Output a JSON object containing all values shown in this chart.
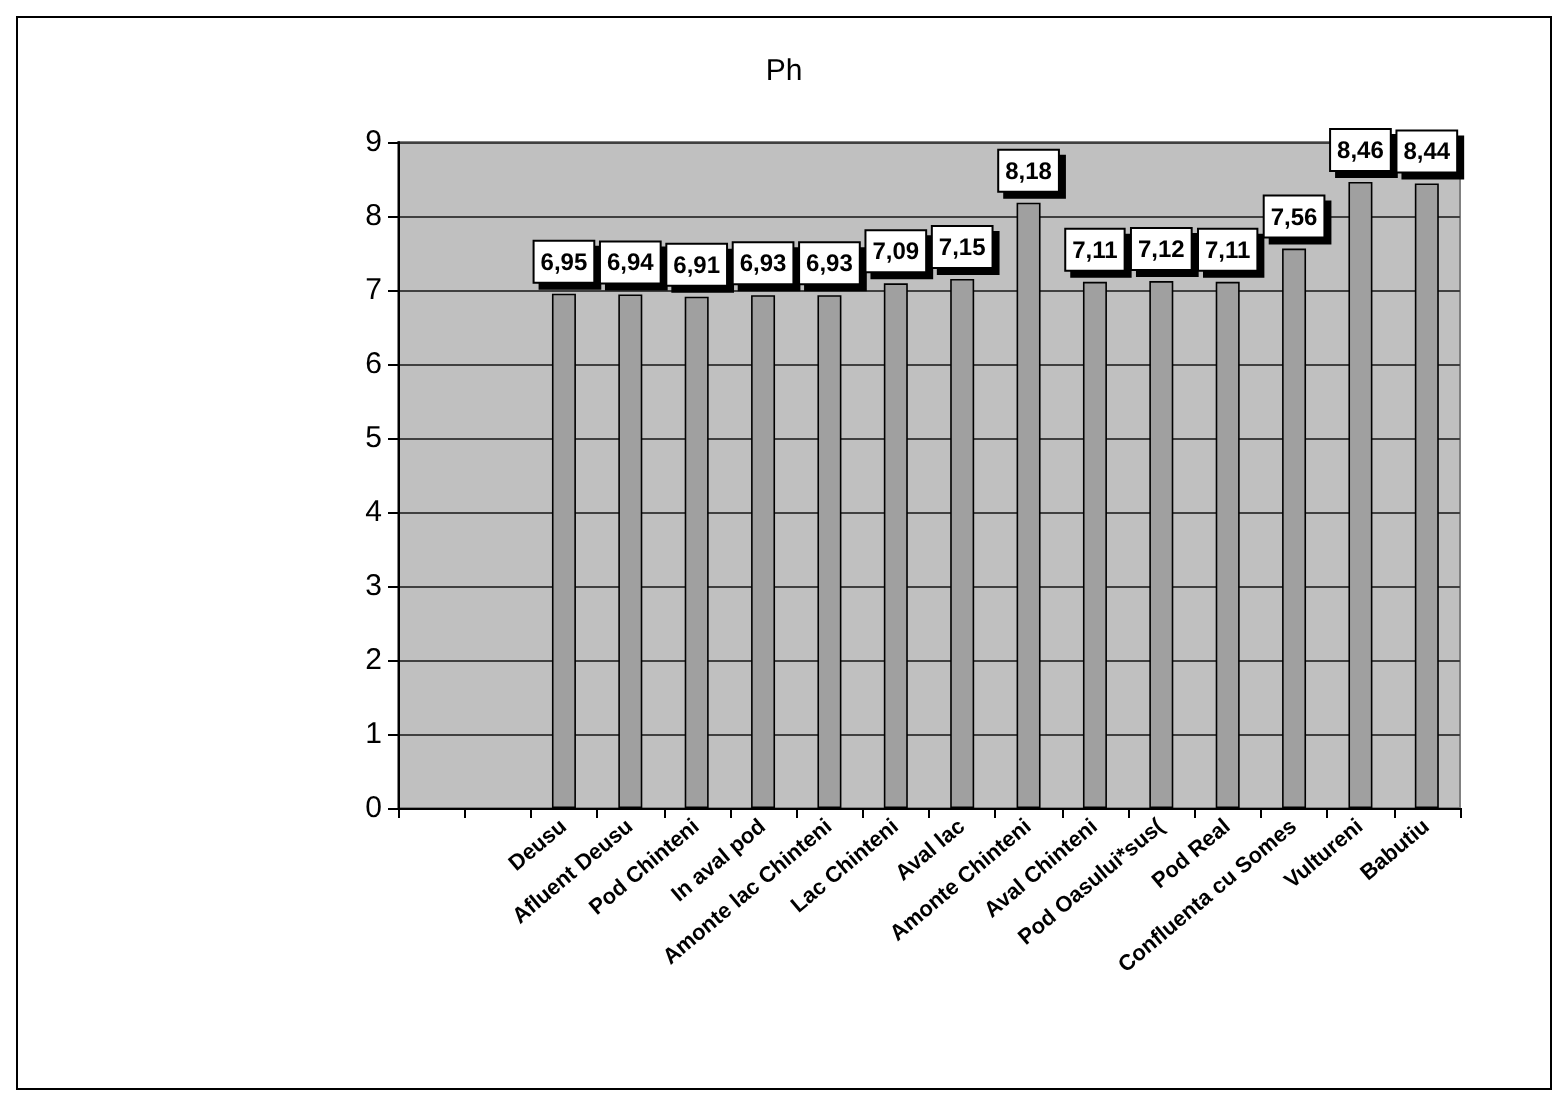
{
  "chart_data": {
    "type": "bar",
    "title": "Ph",
    "categories": [
      null,
      null,
      "Deusu",
      "Afluent Deusu",
      "Pod Chinteni",
      "In aval pod",
      "Amonte lac Chinteni",
      "Lac Chinteni",
      "Aval lac",
      "Amonte Chinteni",
      "Aval Chinteni",
      "Pod Oasului*sus(",
      "Pod Real",
      "Confluenta cu Somes",
      "Vultureni",
      "Babutiu"
    ],
    "values": [
      null,
      null,
      6.95,
      6.94,
      6.91,
      6.93,
      6.93,
      7.09,
      7.15,
      8.18,
      7.11,
      7.12,
      7.11,
      7.56,
      8.46,
      8.44
    ],
    "value_labels": [
      null,
      null,
      "6,95",
      "6,94",
      "6,91",
      "6,93",
      "6,93",
      "7,09",
      "7,15",
      "8,18",
      "7,11",
      "7,12",
      "7,11",
      "7,56",
      "8,46",
      "8,44"
    ],
    "color": "#a0a0a0",
    "ylim": [
      0,
      9
    ],
    "yticks": [
      0,
      1,
      2,
      3,
      4,
      5,
      6,
      7,
      8,
      9
    ],
    "grid": "y"
  }
}
